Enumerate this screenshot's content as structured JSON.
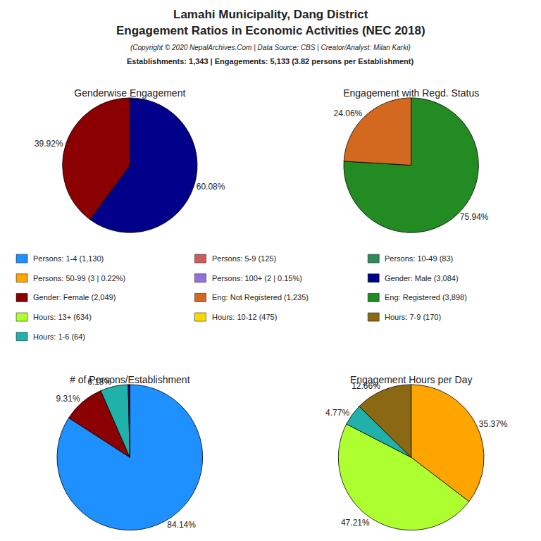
{
  "title": [
    "Lamahi Municipality, Dang District",
    "Engagement Ratios in Economic Activities (NEC 2018)"
  ],
  "subtitle": "(Copyright © 2020 NepalArchives.Com | Data Source: CBS | Creator/Analyst: Milan Karki)",
  "annotations": [
    "Establishments: 1,343 | Engagements: 5,133 (3.82 persons per Establishment)"
  ],
  "legend_entries": [
    {
      "name": "Persons: 1-4 (1,130)",
      "color": "#1E90FF"
    },
    {
      "name": "Persons: 5-9 (125)",
      "color": "#CD5C5C"
    },
    {
      "name": "Persons: 10-49 (83)",
      "color": "#2E8B57"
    },
    {
      "name": "Persons: 50-99 (3 | 0.22%)",
      "color": "#FFA500"
    },
    {
      "name": "Persons: 100+ (2 | 0.15%)",
      "color": "#9370DB"
    },
    {
      "name": "Gender: Male (3,084)",
      "color": "#00008B"
    },
    {
      "name": "Gender: Female (2,049)",
      "color": "#8B0000"
    },
    {
      "name": "Eng: Not Registered (1,235)",
      "color": "#D2691E"
    },
    {
      "name": "Eng: Registered (3,898)",
      "color": "#228B22"
    },
    {
      "name": "Hours: 13+ (634)",
      "color": "#ADFF2F"
    },
    {
      "name": "Hours: 10-12 (475)",
      "color": "#FFD700"
    },
    {
      "name": "Hours: 7-9 (170)",
      "color": "#8B6914"
    },
    {
      "name": "Hours: 1-6 (64)",
      "color": "#20B2AA"
    }
  ],
  "chart_data": [
    {
      "type": "pie",
      "title": "Genderwise Engagement",
      "values": [
        60.08,
        39.92
      ],
      "colors": [
        "#00008B",
        "#8B0000"
      ],
      "value_labels": [
        "60.08%",
        "39.92%"
      ],
      "data_labels": true
    },
    {
      "type": "pie",
      "title": "Engagement with Regd. Status",
      "values": [
        75.94,
        24.06
      ],
      "colors": [
        "#228B22",
        "#D2691E"
      ],
      "value_labels": [
        "75.94%",
        "24.06%"
      ],
      "data_labels": true
    },
    {
      "type": "pie",
      "title": "# of Persons/Establishment",
      "values": [
        84.14,
        9.31,
        6.18,
        0.37
      ],
      "colors": [
        "#1E90FF",
        "#8B0000",
        "#20B2AA",
        "#00008B"
      ],
      "value_labels": [
        "84.14%",
        "9.31%",
        "6.18%",
        null
      ],
      "data_labels": true
    },
    {
      "type": "pie",
      "title": "Engagement Hours per Day",
      "values": [
        35.37,
        47.21,
        4.77,
        12.66
      ],
      "colors": [
        "#FFA500",
        "#ADFF2F",
        "#20B2AA",
        "#8B6914"
      ],
      "value_labels": [
        "35.37%",
        "47.21%",
        "4.77%",
        "12.66%"
      ],
      "data_labels": true
    }
  ]
}
